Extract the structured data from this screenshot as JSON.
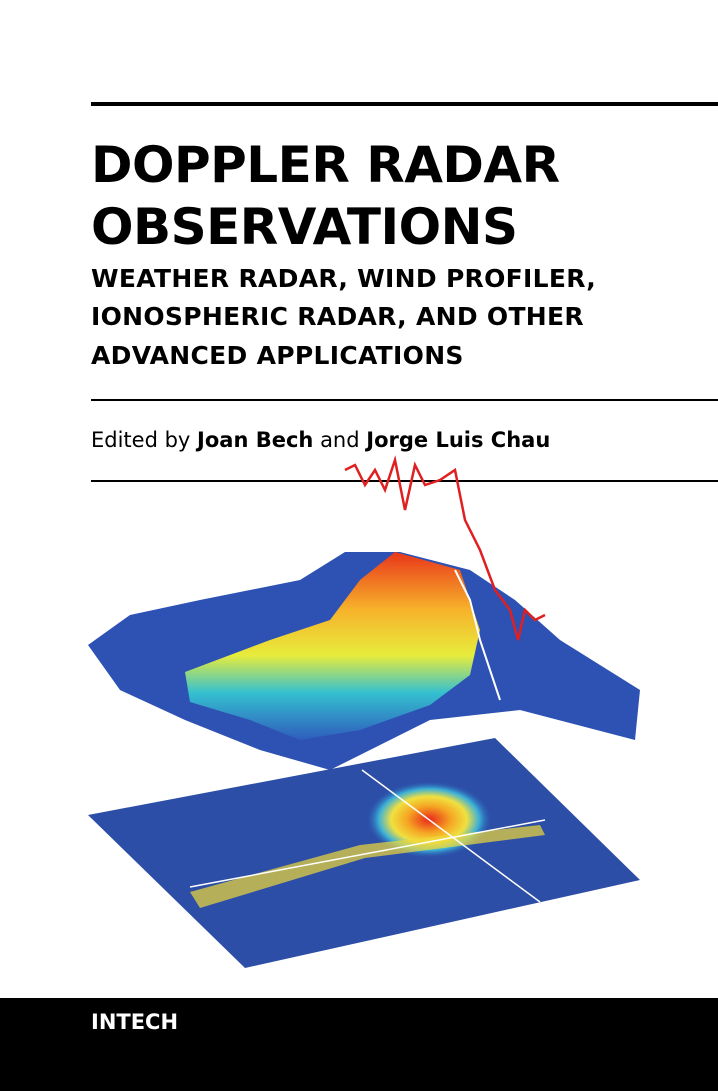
{
  "cover": {
    "title": [
      "DOPPLER RADAR",
      "OBSERVATIONS"
    ],
    "subtitle": [
      "WEATHER RADAR, WIND PROFILER,",
      "IONOSPHERIC RADAR, AND OTHER",
      "ADVANCED APPLICATIONS"
    ],
    "editors": {
      "prefix": "Edited by",
      "first": "Joan Bech",
      "joiner": "and",
      "second": "Jorge Luis Chau"
    },
    "publisher": "INTECH"
  }
}
